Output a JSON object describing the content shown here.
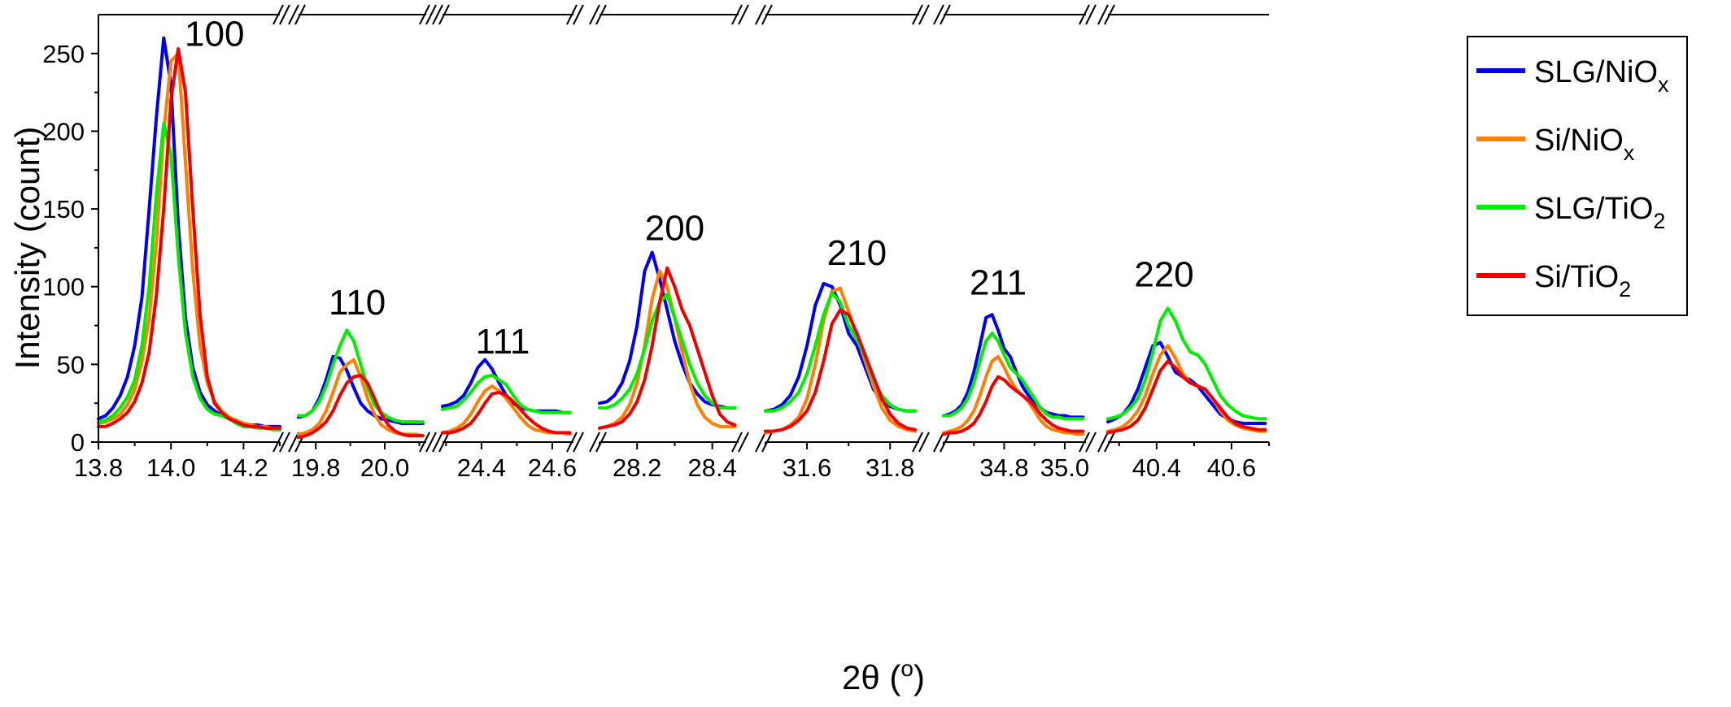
{
  "chart_data": {
    "type": "line",
    "xlabel": "2θ (°)",
    "xlabel_main": "2θ (",
    "xlabel_sup": "o",
    "xlabel_close": ")",
    "ylabel": "Intensity (count)",
    "ylim": [
      0,
      275
    ],
    "yticks": [
      0,
      50,
      100,
      150,
      200,
      250
    ],
    "grid": false,
    "legend_position": "top-right",
    "series": [
      {
        "name": "SLG/NiOx",
        "label_main": "SLG/NiO",
        "label_sub": "x",
        "color": "#0000ee"
      },
      {
        "name": "Si/NiOx",
        "label_main": "Si/NiO",
        "label_sub": "x",
        "color": "#ff8000"
      },
      {
        "name": "SLG/TiO2",
        "label_main": "SLG/TiO",
        "label_sub": "2",
        "color": "#00ee00"
      },
      {
        "name": "Si/TiO2",
        "label_main": "Si/TiO",
        "label_sub": "2",
        "color": "#ee0000"
      }
    ],
    "panels": [
      {
        "peak_label": "100",
        "peak_label_at": [
          14.12,
          255
        ],
        "xlim": [
          13.8,
          14.3
        ],
        "ticks": [
          13.8,
          14.0,
          14.2
        ],
        "tick_labels": [
          "13.8",
          "14.0",
          "14.2"
        ],
        "x": [
          13.8,
          13.82,
          13.84,
          13.86,
          13.88,
          13.9,
          13.92,
          13.94,
          13.96,
          13.98,
          14.0,
          14.02,
          14.04,
          14.06,
          14.08,
          14.1,
          14.12,
          14.14,
          14.16,
          14.18,
          14.2,
          14.22,
          14.24,
          14.26,
          14.28,
          14.3
        ],
        "data": [
          [
            15,
            17,
            22,
            30,
            42,
            62,
            93,
            150,
            210,
            260,
            230,
            140,
            80,
            48,
            32,
            24,
            20,
            17,
            15,
            13,
            12,
            11,
            11,
            10,
            10,
            10
          ],
          [
            12,
            13,
            15,
            18,
            24,
            34,
            52,
            80,
            130,
            200,
            245,
            250,
            180,
            110,
            62,
            38,
            26,
            20,
            16,
            14,
            12,
            11,
            10,
            10,
            9,
            9
          ],
          [
            13,
            14,
            17,
            22,
            29,
            40,
            62,
            100,
            160,
            205,
            185,
            120,
            70,
            42,
            28,
            21,
            18,
            17,
            15,
            12,
            10,
            10,
            9,
            9,
            8,
            8
          ],
          [
            10,
            10,
            12,
            15,
            19,
            26,
            38,
            58,
            95,
            150,
            220,
            253,
            225,
            150,
            82,
            42,
            25,
            19,
            15,
            13,
            11,
            10,
            10,
            9,
            9,
            9
          ]
        ]
      },
      {
        "peak_label": "110",
        "peak_label_at": [
          19.92,
          82
        ],
        "xlim": [
          19.75,
          20.12
        ],
        "ticks": [
          19.8,
          20.0
        ],
        "tick_labels": [
          "19.8",
          "20.0"
        ],
        "x": [
          19.75,
          19.77,
          19.79,
          19.81,
          19.83,
          19.85,
          19.87,
          19.89,
          19.91,
          19.93,
          19.95,
          19.97,
          19.99,
          20.01,
          20.03,
          20.05,
          20.07,
          20.09,
          20.11
        ],
        "data": [
          [
            16,
            17,
            20,
            28,
            40,
            55,
            54,
            46,
            35,
            25,
            20,
            17,
            15,
            14,
            13,
            12,
            12,
            12,
            12
          ],
          [
            5,
            6,
            8,
            12,
            20,
            32,
            45,
            50,
            53,
            42,
            28,
            18,
            11,
            8,
            6,
            5,
            5,
            5,
            4
          ],
          [
            17,
            17,
            20,
            26,
            36,
            50,
            62,
            72,
            65,
            50,
            35,
            24,
            19,
            16,
            14,
            13,
            13,
            13,
            13
          ],
          [
            3,
            4,
            6,
            9,
            13,
            20,
            30,
            38,
            42,
            43,
            38,
            28,
            18,
            11,
            7,
            5,
            4,
            4,
            4
          ]
        ]
      },
      {
        "peak_label": "111",
        "peak_label_at": [
          24.46,
          57
        ],
        "xlim": [
          24.29,
          24.66
        ],
        "ticks": [
          24.4,
          24.6
        ],
        "tick_labels": [
          "24.4",
          "24.6"
        ],
        "x": [
          24.29,
          24.31,
          24.33,
          24.35,
          24.37,
          24.39,
          24.41,
          24.43,
          24.45,
          24.47,
          24.49,
          24.51,
          24.53,
          24.55,
          24.57,
          24.59,
          24.61,
          24.63,
          24.65
        ],
        "data": [
          [
            23,
            24,
            26,
            30,
            38,
            48,
            53,
            47,
            38,
            30,
            25,
            22,
            21,
            20,
            20,
            20,
            20,
            19,
            19
          ],
          [
            6,
            7,
            9,
            12,
            18,
            26,
            33,
            36,
            33,
            28,
            22,
            16,
            11,
            8,
            7,
            6,
            6,
            6,
            5
          ],
          [
            21,
            22,
            23,
            27,
            32,
            38,
            42,
            43,
            40,
            37,
            30,
            24,
            21,
            20,
            19,
            19,
            19,
            19,
            19
          ],
          [
            6,
            6,
            7,
            9,
            12,
            18,
            25,
            31,
            32,
            30,
            26,
            21,
            16,
            12,
            9,
            7,
            6,
            6,
            6
          ]
        ]
      },
      {
        "peak_label": "200",
        "peak_label_at": [
          28.3,
          130
        ],
        "xlim": [
          28.1,
          28.47
        ],
        "ticks": [
          28.2,
          28.4
        ],
        "tick_labels": [
          "28.2",
          "28.4"
        ],
        "x": [
          28.1,
          28.12,
          28.14,
          28.16,
          28.18,
          28.2,
          28.22,
          28.24,
          28.26,
          28.28,
          28.3,
          28.32,
          28.34,
          28.36,
          28.38,
          28.4,
          28.42,
          28.44,
          28.46
        ],
        "data": [
          [
            25,
            26,
            30,
            38,
            52,
            75,
            110,
            122,
            105,
            85,
            65,
            50,
            38,
            31,
            26,
            24,
            23,
            22,
            22
          ],
          [
            9,
            10,
            12,
            16,
            24,
            38,
            62,
            92,
            110,
            100,
            80,
            58,
            38,
            24,
            16,
            12,
            10,
            10,
            10
          ],
          [
            22,
            22,
            24,
            28,
            34,
            44,
            60,
            78,
            90,
            95,
            80,
            65,
            50,
            38,
            30,
            25,
            22,
            22,
            22
          ],
          [
            9,
            10,
            11,
            13,
            18,
            26,
            40,
            62,
            90,
            112,
            100,
            85,
            75,
            60,
            45,
            30,
            18,
            13,
            11
          ]
        ]
      },
      {
        "peak_label": "210",
        "peak_label_at": [
          31.72,
          114
        ],
        "xlim": [
          31.5,
          31.87
        ],
        "ticks": [
          31.6,
          31.8
        ],
        "tick_labels": [
          "31.6",
          "31.8"
        ],
        "x": [
          31.5,
          31.52,
          31.54,
          31.56,
          31.58,
          31.6,
          31.62,
          31.64,
          31.66,
          31.68,
          31.7,
          31.72,
          31.74,
          31.76,
          31.78,
          31.8,
          31.82,
          31.84,
          31.86
        ],
        "data": [
          [
            20,
            21,
            24,
            30,
            42,
            62,
            88,
            102,
            100,
            88,
            70,
            62,
            48,
            34,
            27,
            23,
            21,
            20,
            20
          ],
          [
            6,
            7,
            8,
            11,
            16,
            28,
            50,
            78,
            97,
            99,
            84,
            68,
            52,
            36,
            22,
            14,
            10,
            8,
            7
          ],
          [
            20,
            20,
            22,
            26,
            32,
            44,
            62,
            82,
            96,
            90,
            75,
            66,
            55,
            40,
            30,
            24,
            21,
            20,
            20
          ],
          [
            7,
            7,
            8,
            10,
            14,
            20,
            32,
            52,
            76,
            85,
            82,
            70,
            56,
            42,
            28,
            18,
            12,
            9,
            8
          ]
        ]
      },
      {
        "peak_label": "211",
        "peak_label_at": [
          34.78,
          95
        ],
        "xlim": [
          34.6,
          35.07
        ],
        "ticks": [
          34.8,
          35.0
        ],
        "tick_labels": [
          "34.8",
          "35.0"
        ],
        "x": [
          34.6,
          34.62,
          34.64,
          34.66,
          34.68,
          34.7,
          34.72,
          34.74,
          34.76,
          34.78,
          34.8,
          34.82,
          34.84,
          34.86,
          34.88,
          34.9,
          34.92,
          34.94,
          34.96,
          34.98,
          35.0,
          35.02,
          35.04,
          35.06
        ],
        "data": [
          [
            17,
            18,
            20,
            24,
            32,
            45,
            62,
            80,
            82,
            72,
            60,
            55,
            45,
            36,
            30,
            26,
            22,
            19,
            18,
            17,
            17,
            16,
            16,
            16
          ],
          [
            6,
            7,
            8,
            10,
            14,
            20,
            30,
            42,
            52,
            55,
            48,
            40,
            34,
            30,
            26,
            20,
            14,
            10,
            8,
            7,
            6,
            6,
            5,
            5
          ],
          [
            17,
            17,
            19,
            22,
            28,
            38,
            52,
            65,
            70,
            65,
            56,
            48,
            44,
            40,
            34,
            28,
            22,
            18,
            16,
            16,
            15,
            15,
            15,
            15
          ],
          [
            5,
            6,
            6,
            7,
            9,
            12,
            18,
            26,
            36,
            42,
            40,
            36,
            33,
            30,
            27,
            23,
            18,
            14,
            11,
            9,
            8,
            7,
            7,
            7
          ]
        ]
      },
      {
        "peak_label": "220",
        "peak_label_at": [
          40.42,
          100
        ],
        "xlim": [
          40.27,
          40.7
        ],
        "ticks": [
          40.4,
          40.6
        ],
        "tick_labels": [
          "40.4",
          "40.6"
        ],
        "x": [
          40.27,
          40.29,
          40.31,
          40.33,
          40.35,
          40.37,
          40.39,
          40.41,
          40.43,
          40.45,
          40.47,
          40.49,
          40.51,
          40.53,
          40.55,
          40.57,
          40.59,
          40.61,
          40.63,
          40.65,
          40.67,
          40.69
        ],
        "data": [
          [
            13,
            15,
            18,
            24,
            34,
            48,
            62,
            64,
            55,
            45,
            42,
            40,
            36,
            30,
            24,
            18,
            15,
            13,
            12,
            12,
            12,
            12
          ],
          [
            7,
            8,
            10,
            14,
            20,
            30,
            44,
            56,
            62,
            54,
            44,
            38,
            36,
            34,
            28,
            20,
            14,
            11,
            9,
            8,
            7,
            7
          ],
          [
            15,
            16,
            18,
            22,
            28,
            40,
            58,
            78,
            86,
            78,
            66,
            58,
            56,
            50,
            40,
            30,
            24,
            20,
            17,
            16,
            15,
            15
          ],
          [
            6,
            7,
            8,
            10,
            14,
            22,
            34,
            46,
            52,
            48,
            42,
            38,
            36,
            34,
            28,
            22,
            16,
            12,
            10,
            9,
            8,
            8
          ]
        ]
      }
    ]
  }
}
